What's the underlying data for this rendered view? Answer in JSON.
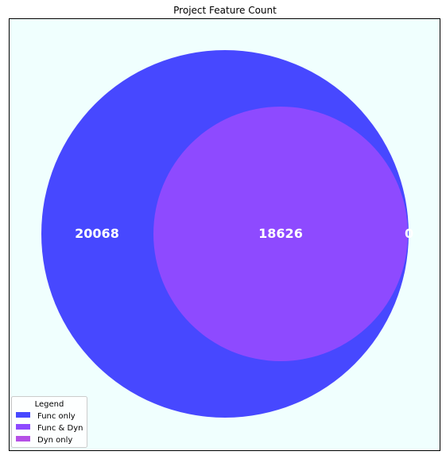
{
  "chart_data": {
    "type": "venn",
    "title": "Project Feature Count",
    "sets": [
      {
        "name": "Func",
        "size": 38694
      },
      {
        "name": "Dyn",
        "size": 18626
      }
    ],
    "regions": [
      {
        "key": "func_only",
        "label": "Func only",
        "value": 20068,
        "display": "20068",
        "color": "#4748ff"
      },
      {
        "key": "func_dyn",
        "label": "Func & Dyn",
        "value": 18626,
        "display": "18626",
        "color": "#8e4aff"
      },
      {
        "key": "dyn_only",
        "label": "Dyn only",
        "value": 0,
        "display": "0",
        "color": "#b550e6"
      }
    ],
    "legend": {
      "title": "Legend",
      "placement": "lower-left"
    },
    "background_color": "#f0fffe"
  }
}
